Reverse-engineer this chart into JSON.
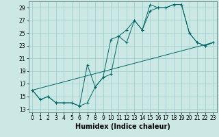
{
  "xlabel": "Humidex (Indice chaleur)",
  "bg_color": "#cce8e4",
  "line_color": "#006666",
  "grid_color": "#99cccc",
  "xlim": [
    -0.5,
    23.5
  ],
  "ylim": [
    12.5,
    30
  ],
  "xticks": [
    0,
    1,
    2,
    3,
    4,
    5,
    6,
    7,
    8,
    9,
    10,
    11,
    12,
    13,
    14,
    15,
    16,
    17,
    18,
    19,
    20,
    21,
    22,
    23
  ],
  "yticks": [
    13,
    15,
    17,
    19,
    21,
    23,
    25,
    27,
    29
  ],
  "line1_x": [
    0,
    1,
    2,
    3,
    4,
    5,
    6,
    7,
    8,
    9,
    10,
    11,
    12,
    13,
    14,
    15,
    16,
    17,
    18,
    19,
    20,
    21,
    22,
    23
  ],
  "line1_y": [
    16,
    14.5,
    15,
    14,
    14,
    14,
    13.5,
    20,
    16.5,
    18,
    18.5,
    24.5,
    25.5,
    27,
    25.5,
    29.5,
    29,
    29,
    29.5,
    29.5,
    25,
    23.5,
    23,
    23.5
  ],
  "line2_x": [
    0,
    1,
    2,
    3,
    4,
    5,
    6,
    7,
    8,
    9,
    10,
    11,
    12,
    13,
    14,
    15,
    16,
    17,
    18,
    19,
    20,
    21,
    22,
    23
  ],
  "line2_y": [
    16,
    14.5,
    15,
    14,
    14,
    14,
    13.5,
    14,
    16.5,
    18,
    24,
    24.5,
    23.5,
    27,
    25.5,
    28.5,
    29,
    29,
    29.5,
    29.5,
    25,
    23.5,
    23,
    23.5
  ],
  "line3_x": [
    0,
    23
  ],
  "line3_y": [
    16,
    23.5
  ],
  "marker_size": 2.5,
  "font_size": 7,
  "tick_font_size": 5.5,
  "lw": 0.7
}
